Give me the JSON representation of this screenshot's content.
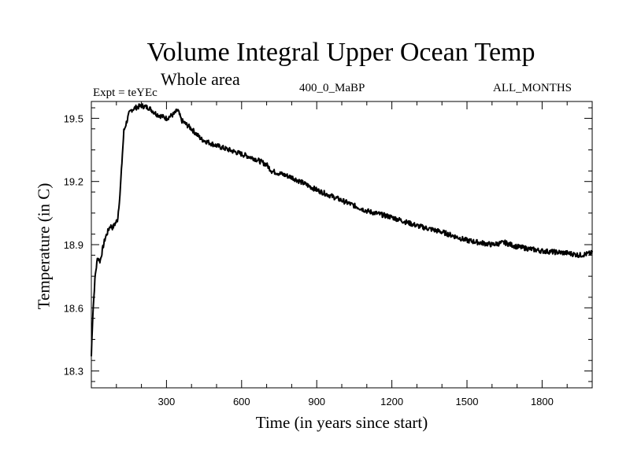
{
  "chart_data": {
    "type": "line",
    "title": "Volume Integral Upper Ocean Temp",
    "subtitle": "Whole area",
    "experiment_label": "Expt = teYEc",
    "period_label": "400_0_MaBP",
    "months_label": "ALL_MONTHS",
    "xlabel": "Time (in years since start)",
    "ylabel": "Temperature (in C)",
    "xlim": [
      0,
      2000
    ],
    "ylim": [
      18.22,
      19.58
    ],
    "xticks": [
      300,
      600,
      900,
      1200,
      1500,
      1800
    ],
    "yticks": [
      18.3,
      18.6,
      18.9,
      19.2,
      19.5
    ],
    "xtick_labels": [
      "300",
      "600",
      "900",
      "1200",
      "1500",
      "1800"
    ],
    "ytick_labels": [
      "18.3",
      "18.6",
      "18.9",
      "19.2",
      "19.5"
    ],
    "grid": false,
    "series": [
      {
        "name": "teYEc",
        "color": "#000000",
        "noise": 0.012,
        "x": [
          0,
          5,
          15,
          25,
          35,
          45,
          55,
          65,
          75,
          85,
          95,
          105,
          115,
          125,
          130,
          140,
          150,
          160,
          175,
          200,
          230,
          260,
          300,
          330,
          345,
          360,
          380,
          400,
          440,
          500,
          600,
          650,
          700,
          720,
          800,
          900,
          1000,
          1100,
          1200,
          1300,
          1400,
          1500,
          1600,
          1650,
          1700,
          1800,
          1900,
          1950,
          2000
        ],
        "y": [
          18.37,
          18.55,
          18.75,
          18.84,
          18.82,
          18.88,
          18.93,
          18.96,
          18.99,
          18.98,
          19.0,
          19.02,
          19.15,
          19.35,
          19.44,
          19.48,
          19.52,
          19.54,
          19.55,
          19.56,
          19.55,
          19.52,
          19.5,
          19.52,
          19.54,
          19.49,
          19.47,
          19.45,
          19.4,
          19.37,
          19.33,
          19.31,
          19.28,
          19.25,
          19.22,
          19.16,
          19.11,
          19.06,
          19.03,
          18.99,
          18.96,
          18.92,
          18.9,
          18.91,
          18.89,
          18.87,
          18.86,
          18.85,
          18.86
        ]
      }
    ]
  }
}
